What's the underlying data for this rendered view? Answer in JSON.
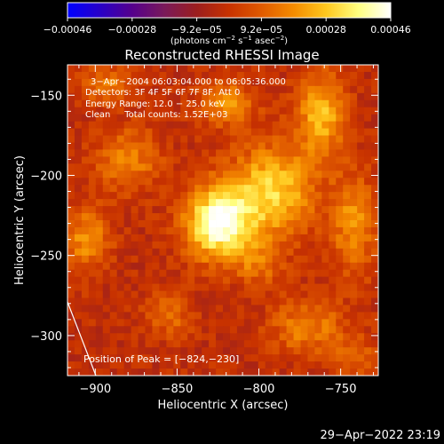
{
  "chart_data": {
    "type": "heatmap",
    "title": "Reconstructed RHESSI Image",
    "xlabel": "Heliocentric X (arcsec)",
    "ylabel": "Heliocentric Y (arcsec)",
    "xlim": [
      -917,
      -727
    ],
    "ylim": [
      -325,
      -131
    ],
    "x_ticks": [
      -900,
      -850,
      -800,
      -750
    ],
    "y_ticks": [
      -300,
      -250,
      -200,
      -150
    ],
    "x_tick_labels": [
      "−900",
      "−850",
      "−800",
      "−750"
    ],
    "y_tick_labels": [
      "−300",
      "−250",
      "−200",
      "−150"
    ],
    "colorbar": {
      "range": [
        -0.00046,
        0.00046
      ],
      "tick_labels": [
        "−0.00046",
        "−0.00028",
        "−9.2e−05",
        "9.2e−05",
        "0.00028",
        "0.00046"
      ],
      "unit_parts": [
        "(photons cm",
        "−2",
        " s",
        "−1",
        " asec",
        "−2",
        ")"
      ]
    },
    "info_lines": [
      "3−Apr−2004 06:03:04.000 to 06:05:36.000",
      "Detectors: 3F 4F 5F 6F 7F 8F, Att 0",
      "Energy Range: 12.0 − 25.0 keV",
      "Clean     Total counts: 1.52E+03"
    ],
    "peak_label": "Position of Peak = [−824,−230]",
    "peak": [
      -824,
      -230
    ],
    "sources": [
      {
        "x": -825,
        "y": -230,
        "sx": 14,
        "sy": 16,
        "a": 1.0
      },
      {
        "x": -792,
        "y": -210,
        "sx": 18,
        "sy": 20,
        "a": 0.7
      },
      {
        "x": -762,
        "y": -162,
        "sx": 10,
        "sy": 18,
        "a": 0.6
      },
      {
        "x": -742,
        "y": -230,
        "sx": 10,
        "sy": 22,
        "a": 0.45
      },
      {
        "x": -820,
        "y": -155,
        "sx": 12,
        "sy": 10,
        "a": 0.45
      },
      {
        "x": -880,
        "y": -190,
        "sx": 14,
        "sy": 14,
        "a": 0.4
      },
      {
        "x": -905,
        "y": -240,
        "sx": 10,
        "sy": 14,
        "a": 0.45
      },
      {
        "x": -893,
        "y": -143,
        "sx": 12,
        "sy": 8,
        "a": 0.35
      },
      {
        "x": -770,
        "y": -295,
        "sx": 16,
        "sy": 12,
        "a": 0.4
      },
      {
        "x": -855,
        "y": -287,
        "sx": 10,
        "sy": 10,
        "a": 0.3
      },
      {
        "x": -800,
        "y": -255,
        "sx": 10,
        "sy": 10,
        "a": 0.3
      },
      {
        "x": -740,
        "y": -315,
        "sx": 10,
        "sy": 10,
        "a": 0.25
      }
    ],
    "colors": {
      "background": "#000000",
      "colormap": [
        "#0000ff",
        "#2800c8",
        "#55008c",
        "#7a1a5a",
        "#9c1e1e",
        "#c83200",
        "#e05a00",
        "#f58c00",
        "#ffc81e",
        "#ffff80",
        "#ffffff"
      ]
    }
  },
  "footer": {
    "timestamp": "29−Apr−2022 23:19"
  }
}
